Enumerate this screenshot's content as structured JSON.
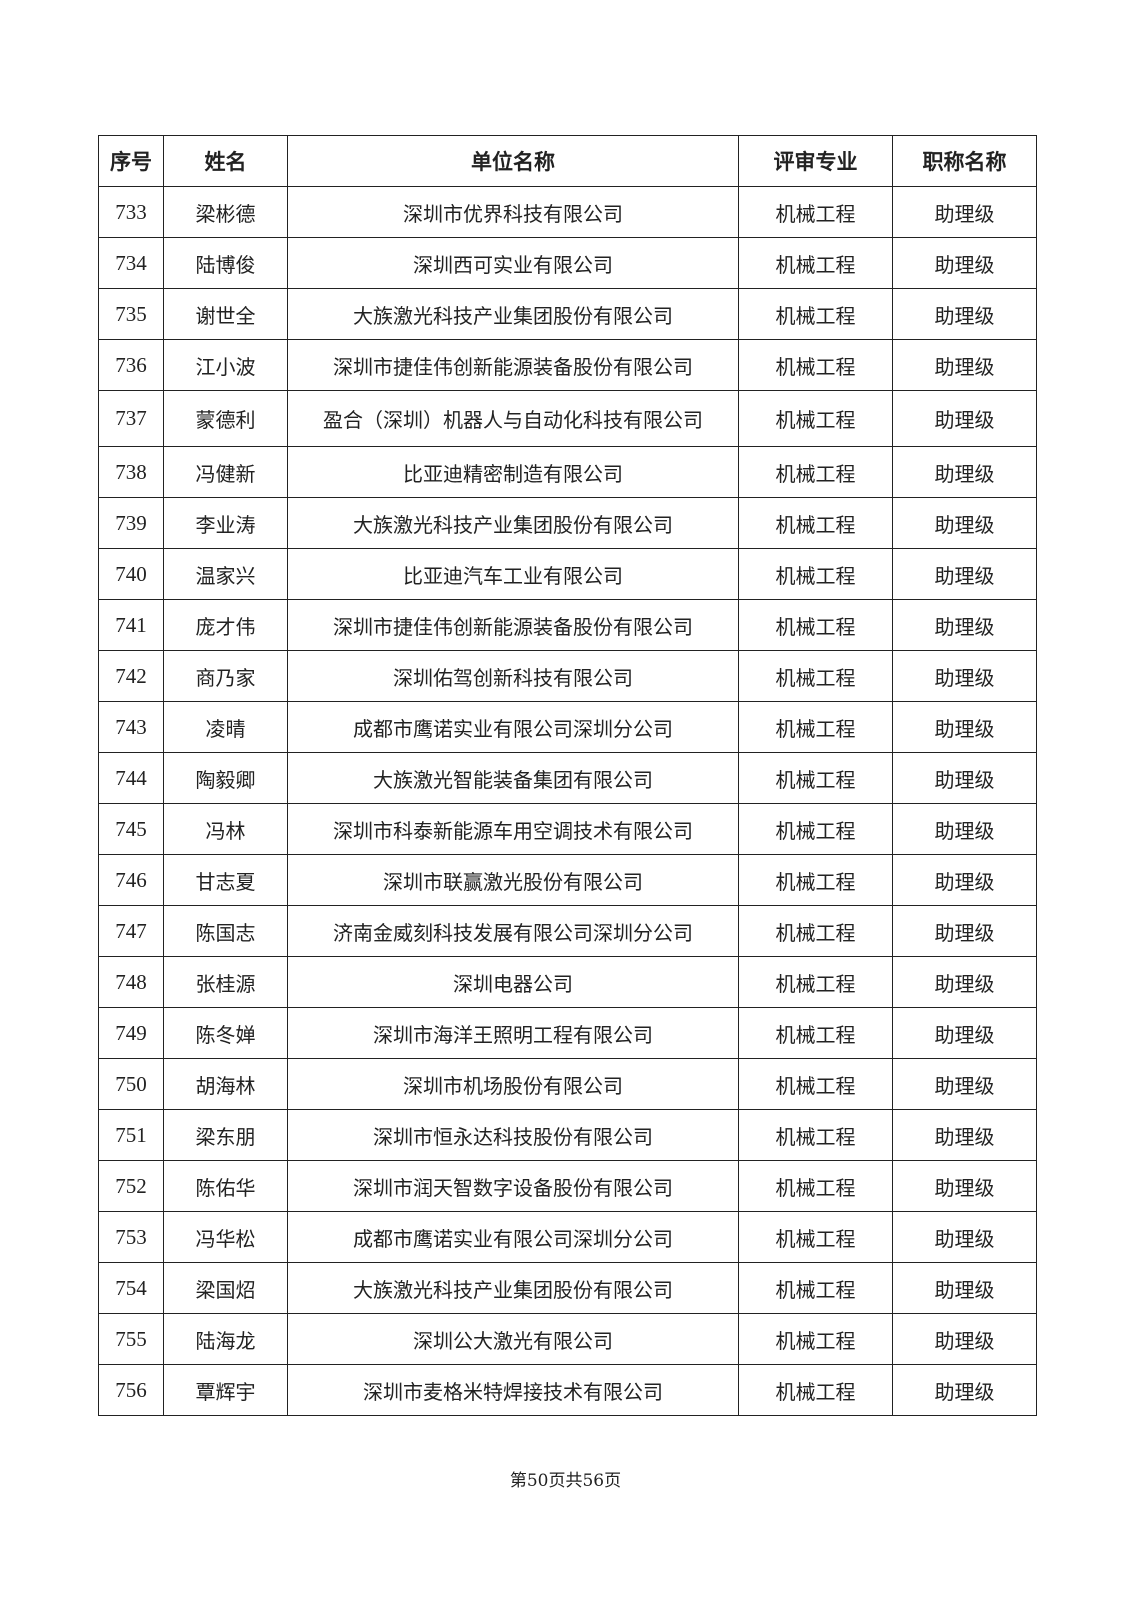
{
  "table": {
    "headers": [
      "序号",
      "姓名",
      "单位名称",
      "评审专业",
      "职称名称"
    ],
    "rows": [
      [
        "733",
        "梁彬德",
        "深圳市优界科技有限公司",
        "机械工程",
        "助理级"
      ],
      [
        "734",
        "陆博俊",
        "深圳西可实业有限公司",
        "机械工程",
        "助理级"
      ],
      [
        "735",
        "谢世全",
        "大族激光科技产业集团股份有限公司",
        "机械工程",
        "助理级"
      ],
      [
        "736",
        "江小波",
        "深圳市捷佳伟创新能源装备股份有限公司",
        "机械工程",
        "助理级"
      ],
      [
        "737",
        "蒙德利",
        "盈合（深圳）机器人与自动化科技有限公司",
        "机械工程",
        "助理级"
      ],
      [
        "738",
        "冯健新",
        "比亚迪精密制造有限公司",
        "机械工程",
        "助理级"
      ],
      [
        "739",
        "李业涛",
        "大族激光科技产业集团股份有限公司",
        "机械工程",
        "助理级"
      ],
      [
        "740",
        "温家兴",
        "比亚迪汽车工业有限公司",
        "机械工程",
        "助理级"
      ],
      [
        "741",
        "庞才伟",
        "深圳市捷佳伟创新能源装备股份有限公司",
        "机械工程",
        "助理级"
      ],
      [
        "742",
        "商乃家",
        "深圳佑驾创新科技有限公司",
        "机械工程",
        "助理级"
      ],
      [
        "743",
        "凌晴",
        "成都市鹰诺实业有限公司深圳分公司",
        "机械工程",
        "助理级"
      ],
      [
        "744",
        "陶毅卿",
        "大族激光智能装备集团有限公司",
        "机械工程",
        "助理级"
      ],
      [
        "745",
        "冯林",
        "深圳市科泰新能源车用空调技术有限公司",
        "机械工程",
        "助理级"
      ],
      [
        "746",
        "甘志夏",
        "深圳市联赢激光股份有限公司",
        "机械工程",
        "助理级"
      ],
      [
        "747",
        "陈国志",
        "济南金威刻科技发展有限公司深圳分公司",
        "机械工程",
        "助理级"
      ],
      [
        "748",
        "张桂源",
        "深圳电器公司",
        "机械工程",
        "助理级"
      ],
      [
        "749",
        "陈冬婵",
        "深圳市海洋王照明工程有限公司",
        "机械工程",
        "助理级"
      ],
      [
        "750",
        "胡海林",
        "深圳市机场股份有限公司",
        "机械工程",
        "助理级"
      ],
      [
        "751",
        "梁东朋",
        "深圳市恒永达科技股份有限公司",
        "机械工程",
        "助理级"
      ],
      [
        "752",
        "陈佑华",
        "深圳市润天智数字设备股份有限公司",
        "机械工程",
        "助理级"
      ],
      [
        "753",
        "冯华松",
        "成都市鹰诺实业有限公司深圳分公司",
        "机械工程",
        "助理级"
      ],
      [
        "754",
        "梁国炤",
        "大族激光科技产业集团股份有限公司",
        "机械工程",
        "助理级"
      ],
      [
        "755",
        "陆海龙",
        "深圳公大激光有限公司",
        "机械工程",
        "助理级"
      ],
      [
        "756",
        "覃辉宇",
        "深圳市麦格米特焊接技术有限公司",
        "机械工程",
        "助理级"
      ]
    ]
  },
  "footer": {
    "page_label": "第50页共56页"
  }
}
